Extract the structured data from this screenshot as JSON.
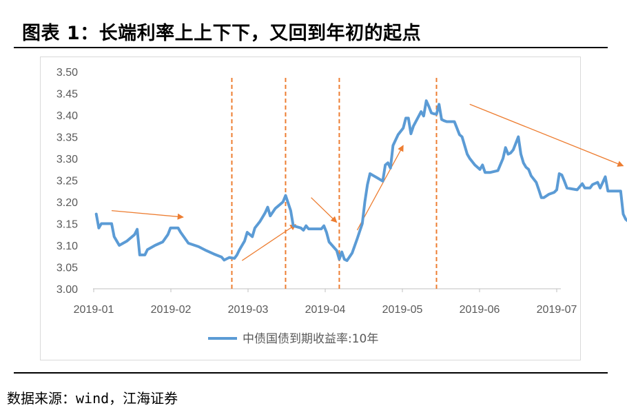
{
  "header": {
    "title": "图表 1：长端利率上上下下，又回到年初的起点"
  },
  "footer": {
    "source": "数据来源：wind，江海证券"
  },
  "colors": {
    "series": "#5b9bd5",
    "annotation": "#ed7d31",
    "axis": "#bfbfbf",
    "tick_text": "#595959"
  },
  "chart_data": {
    "type": "line",
    "title": "",
    "xlabel": "",
    "ylabel": "",
    "ylim": [
      3.0,
      3.5
    ],
    "y_ticks": [
      "3.00",
      "3.05",
      "3.10",
      "3.15",
      "3.20",
      "3.25",
      "3.30",
      "3.35",
      "3.40",
      "3.45",
      "3.50"
    ],
    "x_ticks": [
      "2019-01",
      "2019-02",
      "2019-03",
      "2019-04",
      "2019-05",
      "2019-06",
      "2019-07"
    ],
    "grid": false,
    "legend": "bottom",
    "series": [
      {
        "name": "中债国债到期收益率:10年",
        "points": [
          [
            "2019-01-02",
            3.172
          ],
          [
            "2019-01-03",
            3.14
          ],
          [
            "2019-01-04",
            3.15
          ],
          [
            "2019-01-07",
            3.15
          ],
          [
            "2019-01-08",
            3.15
          ],
          [
            "2019-01-09",
            3.12
          ],
          [
            "2019-01-10",
            3.11
          ],
          [
            "2019-01-11",
            3.1
          ],
          [
            "2019-01-14",
            3.11
          ],
          [
            "2019-01-17",
            3.125
          ],
          [
            "2019-01-18",
            3.137
          ],
          [
            "2019-01-19",
            3.078
          ],
          [
            "2019-01-21",
            3.078
          ],
          [
            "2019-01-22",
            3.09
          ],
          [
            "2019-01-25",
            3.1
          ],
          [
            "2019-01-28",
            3.108
          ],
          [
            "2019-01-30",
            3.125
          ],
          [
            "2019-01-31",
            3.14
          ],
          [
            "2019-02-01",
            3.14
          ],
          [
            "2019-02-02",
            3.14
          ],
          [
            "2019-02-03",
            3.14
          ],
          [
            "2019-02-04",
            3.13
          ],
          [
            "2019-02-07",
            3.105
          ],
          [
            "2019-02-11",
            3.097
          ],
          [
            "2019-02-14",
            3.088
          ],
          [
            "2019-02-17",
            3.08
          ],
          [
            "2019-02-20",
            3.073
          ],
          [
            "2019-02-21",
            3.066
          ],
          [
            "2019-02-23",
            3.072
          ],
          [
            "2019-02-25",
            3.07
          ],
          [
            "2019-02-26",
            3.078
          ],
          [
            "2019-02-27",
            3.09
          ],
          [
            "2019-02-28",
            3.1
          ],
          [
            "2019-03-01",
            3.11
          ],
          [
            "2019-03-02",
            3.13
          ],
          [
            "2019-03-04",
            3.12
          ],
          [
            "2019-03-05",
            3.14
          ],
          [
            "2019-03-07",
            3.155
          ],
          [
            "2019-03-09",
            3.175
          ],
          [
            "2019-03-10",
            3.188
          ],
          [
            "2019-03-11",
            3.168
          ],
          [
            "2019-03-13",
            3.185
          ],
          [
            "2019-03-14",
            3.19
          ],
          [
            "2019-03-16",
            3.2
          ],
          [
            "2019-03-17",
            3.215
          ],
          [
            "2019-03-19",
            3.18
          ],
          [
            "2019-03-20",
            3.145
          ],
          [
            "2019-03-23",
            3.14
          ],
          [
            "2019-03-24",
            3.135
          ],
          [
            "2019-03-25",
            3.145
          ],
          [
            "2019-03-26",
            3.138
          ],
          [
            "2019-03-28",
            3.138
          ],
          [
            "2019-03-31",
            3.138
          ],
          [
            "2019-04-01",
            3.145
          ],
          [
            "2019-04-02",
            3.13
          ],
          [
            "2019-04-03",
            3.108
          ],
          [
            "2019-04-06",
            3.088
          ],
          [
            "2019-04-07",
            3.068
          ],
          [
            "2019-04-08",
            3.085
          ],
          [
            "2019-04-09",
            3.068
          ],
          [
            "2019-04-10",
            3.065
          ],
          [
            "2019-04-12",
            3.082
          ],
          [
            "2019-04-14",
            3.115
          ],
          [
            "2019-04-16",
            3.15
          ],
          [
            "2019-04-17",
            3.2
          ],
          [
            "2019-04-18",
            3.24
          ],
          [
            "2019-04-19",
            3.265
          ],
          [
            "2019-04-22",
            3.255
          ],
          [
            "2019-04-24",
            3.248
          ],
          [
            "2019-04-25",
            3.285
          ],
          [
            "2019-04-26",
            3.29
          ],
          [
            "2019-04-27",
            3.278
          ],
          [
            "2019-04-28",
            3.33
          ],
          [
            "2019-04-30",
            3.355
          ],
          [
            "2019-05-02",
            3.37
          ],
          [
            "2019-05-03",
            3.393
          ],
          [
            "2019-05-04",
            3.393
          ],
          [
            "2019-05-05",
            3.357
          ],
          [
            "2019-05-06",
            3.375
          ],
          [
            "2019-05-08",
            3.397
          ],
          [
            "2019-05-09",
            3.408
          ],
          [
            "2019-05-10",
            3.398
          ],
          [
            "2019-05-11",
            3.433
          ],
          [
            "2019-05-12",
            3.42
          ],
          [
            "2019-05-13",
            3.405
          ],
          [
            "2019-05-14",
            3.403
          ],
          [
            "2019-05-15",
            3.402
          ],
          [
            "2019-05-16",
            3.425
          ],
          [
            "2019-05-17",
            3.39
          ],
          [
            "2019-05-18",
            3.387
          ],
          [
            "2019-05-19",
            3.385
          ],
          [
            "2019-05-20",
            3.385
          ],
          [
            "2019-05-22",
            3.385
          ],
          [
            "2019-05-24",
            3.355
          ],
          [
            "2019-05-25",
            3.35
          ],
          [
            "2019-05-27",
            3.31
          ],
          [
            "2019-05-28",
            3.3
          ],
          [
            "2019-05-30",
            3.285
          ],
          [
            "2019-06-01",
            3.275
          ],
          [
            "2019-06-02",
            3.285
          ],
          [
            "2019-06-03",
            3.268
          ],
          [
            "2019-06-05",
            3.268
          ],
          [
            "2019-06-08",
            3.272
          ],
          [
            "2019-06-10",
            3.3
          ],
          [
            "2019-06-11",
            3.325
          ],
          [
            "2019-06-12",
            3.31
          ],
          [
            "2019-06-13",
            3.313
          ],
          [
            "2019-06-14",
            3.32
          ],
          [
            "2019-06-16",
            3.35
          ],
          [
            "2019-06-17",
            3.31
          ],
          [
            "2019-06-18",
            3.29
          ],
          [
            "2019-06-19",
            3.28
          ],
          [
            "2019-06-20",
            3.275
          ],
          [
            "2019-06-21",
            3.26
          ],
          [
            "2019-06-23",
            3.245
          ],
          [
            "2019-06-24",
            3.228
          ],
          [
            "2019-06-25",
            3.21
          ],
          [
            "2019-06-26",
            3.21
          ],
          [
            "2019-06-28",
            3.218
          ],
          [
            "2019-06-30",
            3.222
          ],
          [
            "2019-07-01",
            3.228
          ],
          [
            "2019-07-02",
            3.265
          ],
          [
            "2019-07-03",
            3.262
          ],
          [
            "2019-07-04",
            3.248
          ],
          [
            "2019-07-05",
            3.232
          ],
          [
            "2019-07-07",
            3.23
          ],
          [
            "2019-07-09",
            3.228
          ],
          [
            "2019-07-11",
            3.242
          ],
          [
            "2019-07-12",
            3.232
          ],
          [
            "2019-07-14",
            3.232
          ],
          [
            "2019-07-15",
            3.24
          ],
          [
            "2019-07-17",
            3.245
          ],
          [
            "2019-07-18",
            3.232
          ],
          [
            "2019-07-20",
            3.258
          ],
          [
            "2019-07-21",
            3.225
          ],
          [
            "2019-07-23",
            3.225
          ],
          [
            "2019-07-26",
            3.225
          ],
          [
            "2019-07-27",
            3.172
          ],
          [
            "2019-07-28",
            3.16
          ],
          [
            "2019-07-30",
            3.15
          ],
          [
            "2019-07-31",
            3.172
          ]
        ]
      }
    ],
    "annotations": {
      "dashed_verticals": [
        "2019-02-24",
        "2019-03-17",
        "2019-04-07",
        "2019-05-15"
      ],
      "trend_arrows": [
        {
          "from": [
            "2019-01-08",
            3.18
          ],
          "to": [
            "2019-02-05",
            3.165
          ]
        },
        {
          "from": [
            "2019-02-28",
            3.065
          ],
          "to": [
            "2019-03-21",
            3.148
          ]
        },
        {
          "from": [
            "2019-03-27",
            3.21
          ],
          "to": [
            "2019-04-06",
            3.153
          ]
        },
        {
          "from": [
            "2019-04-14",
            3.135
          ],
          "to": [
            "2019-05-02",
            3.33
          ]
        },
        {
          "from": [
            "2019-05-28",
            3.425
          ],
          "to": [
            "2019-07-27",
            3.283
          ]
        }
      ]
    }
  }
}
